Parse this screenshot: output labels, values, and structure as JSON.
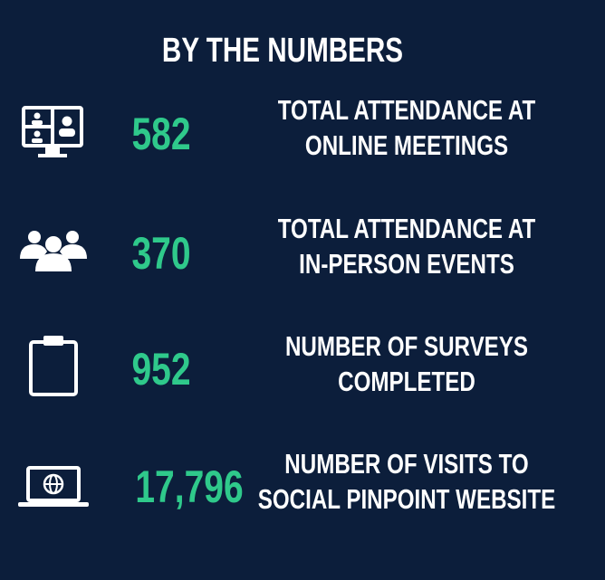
{
  "title": "BY THE NUMBERS",
  "stats": [
    {
      "value": "582",
      "label_lines": [
        "TOTAL ATTENDANCE AT",
        "ONLINE MEETINGS"
      ]
    },
    {
      "value": "370",
      "label_lines": [
        "TOTAL ATTENDANCE AT",
        "IN-PERSON EVENTS"
      ]
    },
    {
      "value": "952",
      "label_lines": [
        "NUMBER OF SURVEYS",
        "COMPLETED"
      ]
    },
    {
      "value": "17,796",
      "label_lines": [
        "NUMBER OF VISITS TO",
        "SOCIAL PINPOINT WEBSITE"
      ]
    }
  ]
}
